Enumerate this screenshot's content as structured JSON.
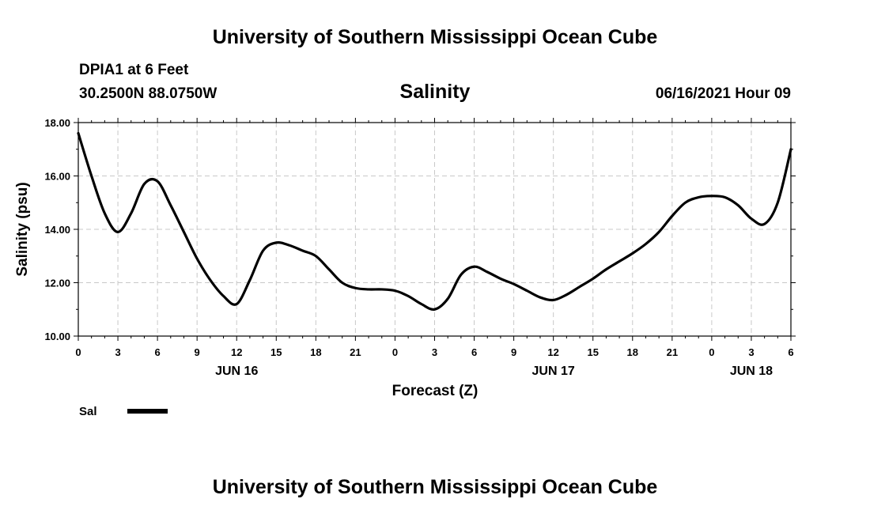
{
  "header": {
    "title_top": "University of Southern Mississippi Ocean Cube",
    "station": "DPIA1 at 6 Feet",
    "coords": "30.2500N  88.0750W",
    "datetime": "06/16/2021 Hour 09",
    "title_bottom": "University of Southern Mississippi Ocean Cube"
  },
  "legend": {
    "label": "Sal",
    "color": "#000000"
  },
  "chart_data": {
    "type": "line",
    "title": "Salinity",
    "xlabel": "Forecast (Z)",
    "ylabel": "Salinity (psu)",
    "ylim": [
      10.0,
      18.0
    ],
    "xlim": [
      0,
      54
    ],
    "x_unit": "hours since 00Z Jun 16",
    "grid": true,
    "legend_position": "bottom-left",
    "yticks": [
      10.0,
      12.0,
      14.0,
      16.0,
      18.0
    ],
    "ytick_labels": [
      "10.00",
      "12.00",
      "14.00",
      "16.00",
      "18.00"
    ],
    "xticks": [
      0,
      3,
      6,
      9,
      12,
      15,
      18,
      21,
      24,
      27,
      30,
      33,
      36,
      39,
      42,
      45,
      48,
      51,
      54
    ],
    "xtick_labels": [
      "0",
      "3",
      "6",
      "9",
      "12",
      "15",
      "18",
      "21",
      "0",
      "3",
      "6",
      "9",
      "12",
      "15",
      "18",
      "21",
      "0",
      "3",
      "6"
    ],
    "day_labels": [
      {
        "x": 12,
        "label": "JUN 16"
      },
      {
        "x": 36,
        "label": "JUN 17"
      },
      {
        "x": 51,
        "label": "JUN 18"
      }
    ],
    "series": [
      {
        "name": "Sal",
        "x": [
          0,
          1,
          2,
          3,
          4,
          5,
          6,
          7,
          8,
          9,
          10,
          11,
          12,
          13,
          14,
          15,
          16,
          17,
          18,
          19,
          20,
          21,
          22,
          23,
          24,
          25,
          26,
          27,
          28,
          29,
          30,
          31,
          32,
          33,
          34,
          35,
          36,
          37,
          38,
          39,
          40,
          41,
          42,
          43,
          44,
          45,
          46,
          47,
          48,
          49,
          50,
          51,
          52,
          53,
          54
        ],
        "values": [
          17.6,
          16.0,
          14.6,
          13.9,
          14.6,
          15.7,
          15.8,
          14.9,
          13.9,
          12.9,
          12.1,
          11.5,
          11.2,
          12.1,
          13.2,
          13.5,
          13.4,
          13.2,
          13.0,
          12.5,
          12.0,
          11.8,
          11.75,
          11.75,
          11.7,
          11.5,
          11.2,
          11.0,
          11.4,
          12.3,
          12.6,
          12.4,
          12.15,
          11.95,
          11.7,
          11.45,
          11.35,
          11.55,
          11.85,
          12.15,
          12.5,
          12.8,
          13.1,
          13.45,
          13.9,
          14.5,
          15.0,
          15.2,
          15.25,
          15.2,
          14.9,
          14.4,
          14.2,
          15.0,
          17.0
        ]
      }
    ]
  }
}
